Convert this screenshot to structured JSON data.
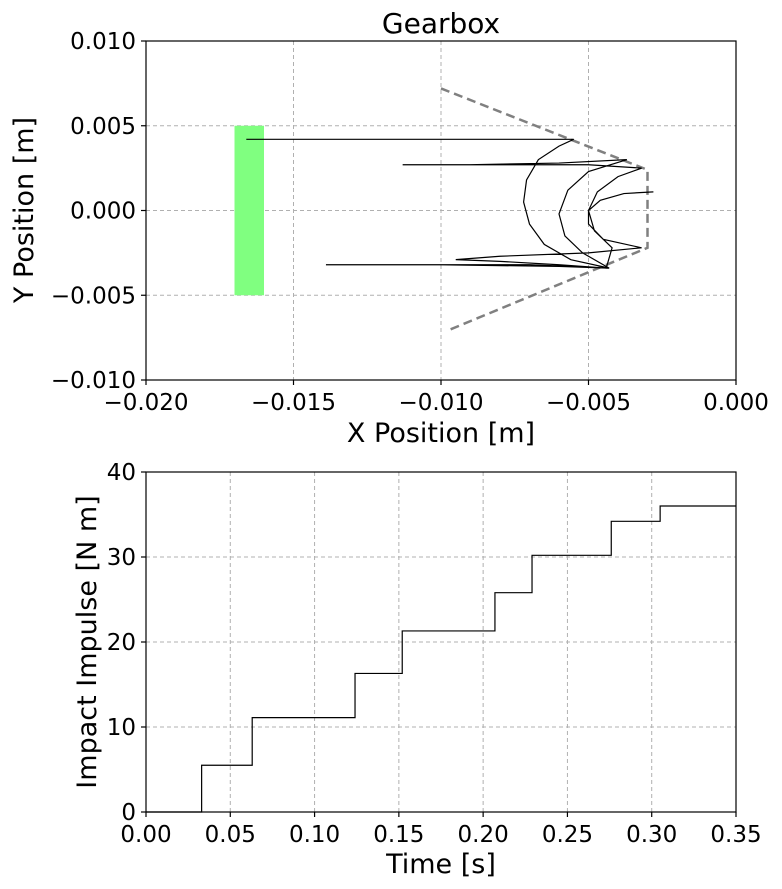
{
  "chart_data": [
    {
      "type": "line",
      "title": "Gearbox",
      "xlabel": "X Position [m]",
      "ylabel": "Y Position [m]",
      "xlim": [
        -0.02,
        0.0
      ],
      "ylim": [
        -0.01,
        0.01
      ],
      "xticks": [
        "−0.020",
        "−0.015",
        "−0.010",
        "−0.005",
        "0.000"
      ],
      "xtick_values": [
        -0.02,
        -0.015,
        -0.01,
        -0.005,
        0.0
      ],
      "yticks": [
        "−0.010",
        "−0.005",
        "0.000",
        "0.005",
        "0.010"
      ],
      "ytick_values": [
        -0.01,
        -0.005,
        0.0,
        0.005,
        0.01
      ],
      "grid": true,
      "zone": {
        "x": [
          -0.017,
          -0.016
        ],
        "y": [
          -0.005,
          0.005
        ],
        "color": "#80ff80"
      },
      "boundary": {
        "color": "#808080",
        "points": [
          [
            -0.01,
            0.0072
          ],
          [
            -0.003,
            0.0024
          ],
          [
            -0.003,
            -0.0022
          ],
          [
            -0.0098,
            -0.0071
          ]
        ]
      },
      "trajectory_color": "#000000",
      "trajectory": [
        [
          -0.0166,
          0.0042
        ],
        [
          -0.0055,
          0.0042
        ],
        [
          -0.006,
          0.0038
        ],
        [
          -0.0067,
          0.003
        ],
        [
          -0.0071,
          0.0018
        ],
        [
          -0.0072,
          0.0005
        ],
        [
          -0.007,
          -0.0008
        ],
        [
          -0.0065,
          -0.002
        ],
        [
          -0.0056,
          -0.0029
        ],
        [
          -0.0043,
          -0.0034
        ],
        [
          -0.007,
          -0.0032
        ],
        [
          -0.01,
          -0.0032
        ],
        [
          -0.0139,
          -0.0032
        ],
        [
          -0.01,
          -0.0032
        ],
        [
          -0.006,
          -0.0033
        ],
        [
          -0.0043,
          -0.0034
        ],
        [
          -0.0052,
          -0.0025
        ],
        [
          -0.0058,
          -0.0015
        ],
        [
          -0.006,
          -0.0002
        ],
        [
          -0.0057,
          0.0012
        ],
        [
          -0.005,
          0.0023
        ],
        [
          -0.0037,
          0.003
        ],
        [
          -0.006,
          0.0028
        ],
        [
          -0.009,
          0.0027
        ],
        [
          -0.0113,
          0.0027
        ],
        [
          -0.008,
          0.0027
        ],
        [
          -0.005,
          0.0027
        ],
        [
          -0.0032,
          0.0025
        ],
        [
          -0.004,
          0.002
        ],
        [
          -0.0047,
          0.0011
        ],
        [
          -0.005,
          0.0
        ],
        [
          -0.0048,
          -0.0012
        ],
        [
          -0.0042,
          -0.0022
        ],
        [
          -0.0044,
          -0.0034
        ],
        [
          -0.006,
          -0.0032
        ],
        [
          -0.008,
          -0.003
        ],
        [
          -0.0095,
          -0.0029
        ],
        [
          -0.008,
          -0.0027
        ],
        [
          -0.005,
          -0.0025
        ],
        [
          -0.0032,
          -0.0022
        ],
        [
          -0.0045,
          -0.0017
        ],
        [
          -0.005,
          -0.0008
        ],
        [
          -0.005,
          0.0
        ],
        [
          -0.0046,
          0.0006
        ],
        [
          -0.0038,
          0.001
        ],
        [
          -0.0028,
          0.0011
        ]
      ]
    },
    {
      "type": "line",
      "title": "",
      "xlabel": "Time [s]",
      "ylabel": "Impact Impulse [N m]",
      "xlim": [
        0.0,
        0.35
      ],
      "ylim": [
        0,
        40
      ],
      "xticks": [
        "0.00",
        "0.05",
        "0.10",
        "0.15",
        "0.20",
        "0.25",
        "0.30",
        "0.35"
      ],
      "xtick_values": [
        0.0,
        0.05,
        0.1,
        0.15,
        0.2,
        0.25,
        0.3,
        0.35
      ],
      "yticks": [
        "0",
        "10",
        "20",
        "30",
        "40"
      ],
      "ytick_values": [
        0,
        10,
        20,
        30,
        40
      ],
      "grid": true,
      "line_color": "#000000",
      "step_x": [
        0.0,
        0.033,
        0.063,
        0.124,
        0.152,
        0.207,
        0.229,
        0.276,
        0.305,
        0.35
      ],
      "step_y": [
        0.0,
        5.5,
        11.1,
        16.3,
        21.3,
        25.8,
        30.2,
        34.2,
        36.0,
        36.0
      ]
    }
  ]
}
